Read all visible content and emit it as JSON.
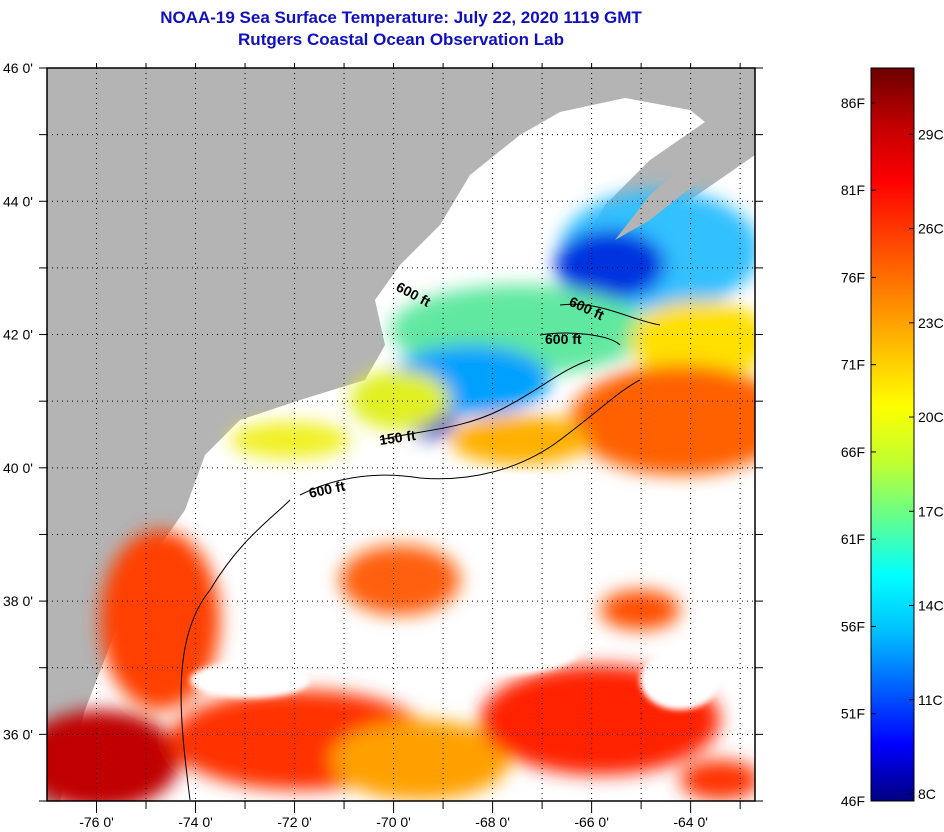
{
  "title": {
    "line1": "NOAA-19 Sea Surface Temperature:  July 22, 2020 1119 GMT",
    "line2": "Rutgers Coastal Ocean Observation Lab"
  },
  "map": {
    "lat_range": [
      35,
      46
    ],
    "lon_range": [
      -77,
      -62.7
    ],
    "lat_labels": [
      {
        "value": 46,
        "text": "46 0'"
      },
      {
        "value": 44,
        "text": "44 0'"
      },
      {
        "value": 42,
        "text": "42 0'"
      },
      {
        "value": 40,
        "text": "40 0'"
      },
      {
        "value": 38,
        "text": "38 0'"
      },
      {
        "value": 36,
        "text": "36 0'"
      }
    ],
    "lon_labels": [
      {
        "value": -76,
        "text": "-76 0'"
      },
      {
        "value": -74,
        "text": "-74 0'"
      },
      {
        "value": -72,
        "text": "-72 0'"
      },
      {
        "value": -70,
        "text": "-70 0'"
      },
      {
        "value": -68,
        "text": "-68 0'"
      },
      {
        "value": -66,
        "text": "-66 0'"
      },
      {
        "value": -64,
        "text": "-64 0'"
      }
    ],
    "contour_labels": [
      "600 ft",
      "600 ft",
      "600 ft",
      "150 ft",
      "600 ft"
    ],
    "colors": {
      "land": "#b4b4b4",
      "no_data": "#ffffff",
      "grid": "#000000"
    }
  },
  "colorbar": {
    "range_f": [
      46,
      88
    ],
    "f_labels": [
      {
        "value": 86,
        "text": "86F"
      },
      {
        "value": 81,
        "text": "81F"
      },
      {
        "value": 76,
        "text": "76F"
      },
      {
        "value": 71,
        "text": "71F"
      },
      {
        "value": 66,
        "text": "66F"
      },
      {
        "value": 61,
        "text": "61F"
      },
      {
        "value": 56,
        "text": "56F"
      },
      {
        "value": 51,
        "text": "51F"
      },
      {
        "value": 46,
        "text": "46F"
      }
    ],
    "c_labels": [
      {
        "value": 29,
        "text": "29C"
      },
      {
        "value": 26,
        "text": "26C"
      },
      {
        "value": 23,
        "text": "23C"
      },
      {
        "value": 20,
        "text": "20C"
      },
      {
        "value": 17,
        "text": "17C"
      },
      {
        "value": 14,
        "text": "14C"
      },
      {
        "value": 11,
        "text": "11C"
      },
      {
        "value": 8,
        "text": "8C"
      }
    ],
    "stops": [
      "#000080",
      "#0000ff",
      "#0060ff",
      "#00c0ff",
      "#00ffff",
      "#60ff90",
      "#c0ff30",
      "#ffff00",
      "#ffc000",
      "#ff8000",
      "#ff4000",
      "#ff0000",
      "#c00000",
      "#6b0000"
    ]
  }
}
